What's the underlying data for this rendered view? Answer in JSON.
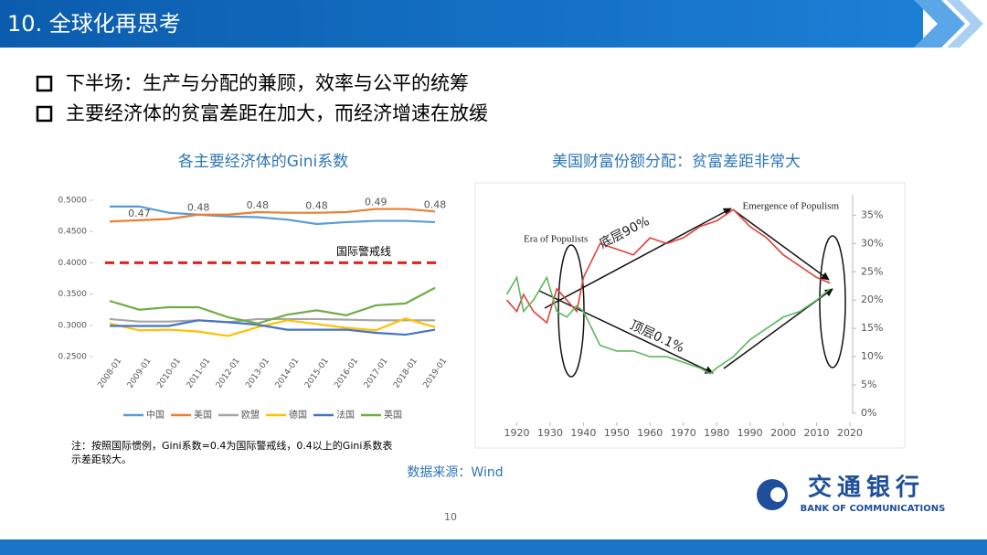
{
  "header": {
    "title": "10. 全球化再思考"
  },
  "bullets": [
    "下半场：生产与分配的兼顾，效率与公平的统筹",
    "主要经济体的贫富差距在加大，而经济增速在放缓"
  ],
  "note": [
    "注：按照国际惯例，Gini系数=0.4为国际警戒线，0.4以上的Gini系数表",
    "示差距较大。"
  ],
  "source": "数据来源：Wind",
  "page_number": "10",
  "logo": {
    "name": "交通银行",
    "english": "BANK OF COMMUNICATIONS"
  },
  "chart_data": [
    {
      "type": "line",
      "title": "各主要经济体的Gini系数",
      "categories": [
        "2008-01",
        "2009-01",
        "2010-01",
        "2011-01",
        "2012-01",
        "2013-01",
        "2014-01",
        "2015-01",
        "2016-01",
        "2017-01",
        "2018-01",
        "2019-01"
      ],
      "ylim": [
        0.25,
        0.5
      ],
      "yticks": [
        {
          "value": 0.25,
          "label": "0.2500"
        },
        {
          "value": 0.3,
          "label": "0.3000"
        },
        {
          "value": 0.35,
          "label": "0.3500"
        },
        {
          "value": 0.4,
          "label": "0.4000"
        },
        {
          "value": 0.45,
          "label": "0.4500"
        },
        {
          "value": 0.5,
          "label": "0.5000"
        }
      ],
      "grid": false,
      "legend": "bottom",
      "threshold": {
        "value": 0.4,
        "label": "国际警戒线",
        "color": "#e02020"
      },
      "series": [
        {
          "name": "中国",
          "color": "#5b9bd5",
          "values": [
            0.49,
            0.49,
            0.48,
            0.477,
            0.474,
            0.473,
            0.469,
            0.462,
            0.465,
            0.467,
            0.467,
            0.465
          ]
        },
        {
          "name": "美国",
          "color": "#ed7d31",
          "values": [
            0.466,
            0.468,
            0.47,
            0.477,
            0.477,
            0.481,
            0.48,
            0.48,
            0.481,
            0.486,
            0.486,
            0.482
          ],
          "value_labels": [
            null,
            "0.47",
            null,
            "0.48",
            null,
            "0.48",
            null,
            "0.48",
            null,
            "0.49",
            null,
            "0.48"
          ]
        },
        {
          "name": "欧盟",
          "color": "#a5a5a5",
          "values": [
            0.31,
            0.306,
            0.306,
            0.308,
            0.305,
            0.31,
            0.31,
            0.31,
            0.309,
            0.308,
            0.308,
            0.308
          ]
        },
        {
          "name": "德国",
          "color": "#ffc000",
          "values": [
            0.303,
            0.292,
            0.293,
            0.29,
            0.283,
            0.297,
            0.308,
            0.302,
            0.296,
            0.292,
            0.311,
            0.297
          ]
        },
        {
          "name": "法国",
          "color": "#4472c4",
          "values": [
            0.299,
            0.299,
            0.299,
            0.308,
            0.305,
            0.301,
            0.293,
            0.293,
            0.293,
            0.288,
            0.285,
            0.293
          ]
        },
        {
          "name": "英国",
          "color": "#70ad47",
          "values": [
            0.339,
            0.325,
            0.329,
            0.329,
            0.313,
            0.303,
            0.317,
            0.324,
            0.316,
            0.332,
            0.335,
            0.36
          ]
        }
      ]
    },
    {
      "type": "line",
      "title": "美国财富份额分配：贫富差距非常大",
      "xlim": [
        1913,
        2020
      ],
      "xticks": [
        1920,
        1930,
        1940,
        1950,
        1960,
        1970,
        1980,
        1990,
        2000,
        2010,
        2020
      ],
      "ylim": [
        0,
        37
      ],
      "yticks": [
        {
          "value": 0,
          "label": "0%"
        },
        {
          "value": 5,
          "label": "5%"
        },
        {
          "value": 10,
          "label": "10%"
        },
        {
          "value": 15,
          "label": "15%"
        },
        {
          "value": 20,
          "label": "20%"
        },
        {
          "value": 25,
          "label": "25%"
        },
        {
          "value": 30,
          "label": "30%"
        },
        {
          "value": 35,
          "label": "35%"
        }
      ],
      "grid": false,
      "annotations": [
        "Era of Populists",
        "Emergence of Populism",
        "底层90%",
        "顶层0.1%"
      ],
      "series": [
        {
          "color": "#e0403a",
          "x": [
            1917,
            1920,
            1922,
            1925,
            1929,
            1932,
            1935,
            1938,
            1940,
            1945,
            1950,
            1955,
            1960,
            1965,
            1970,
            1975,
            1980,
            1985,
            1990,
            1995,
            2000,
            2005,
            2010,
            2014
          ],
          "values": [
            20,
            18,
            21,
            18,
            16,
            22,
            20,
            18,
            24,
            30,
            29,
            28,
            31,
            30,
            31,
            33,
            34,
            36,
            33,
            31,
            28,
            26,
            24,
            23
          ]
        },
        {
          "color": "#5cb85c",
          "x": [
            1917,
            1920,
            1922,
            1925,
            1929,
            1932,
            1935,
            1938,
            1940,
            1945,
            1950,
            1955,
            1960,
            1965,
            1970,
            1975,
            1978,
            1980,
            1985,
            1990,
            1995,
            2000,
            2005,
            2010,
            2014
          ],
          "values": [
            21,
            24,
            18,
            20,
            24,
            18,
            17,
            19,
            18,
            12,
            11,
            11,
            10,
            10,
            9,
            8,
            7,
            8,
            10,
            13,
            15,
            17,
            18,
            20,
            22
          ]
        }
      ]
    }
  ]
}
